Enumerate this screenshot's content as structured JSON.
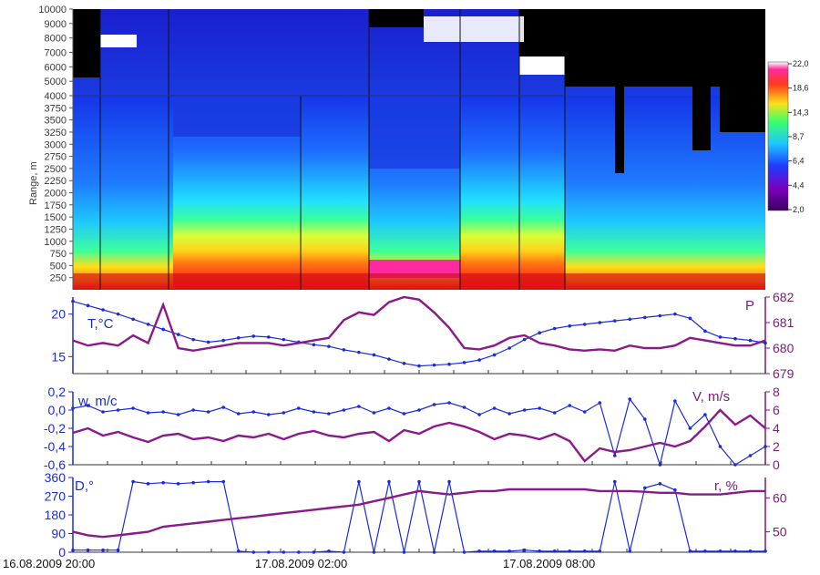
{
  "chart_data": [
    {
      "type": "heatmap",
      "ylabel": "Range, m",
      "yticks": [
        250,
        500,
        750,
        1000,
        1250,
        1500,
        1750,
        2000,
        2250,
        2500,
        2750,
        3000,
        3250,
        3500,
        3750,
        4000,
        5000,
        6000,
        7000,
        8000,
        9000,
        10000
      ],
      "colorbar_ticks": [
        "22,0",
        "18,6",
        "14,3",
        "8,7",
        "6,4",
        "4,4",
        "2,0"
      ],
      "colors": {
        "low": "#4a0070",
        "mid": "#1e6bff",
        "high": "#ff1a1a",
        "max": "#ffffff"
      }
    },
    {
      "type": "line",
      "label_left": "T,°C",
      "label_right": "P",
      "left_ticks": [
        "20",
        "15"
      ],
      "right_ticks": [
        "682",
        "681",
        "680",
        "679"
      ],
      "ylim_left": [
        13,
        22
      ],
      "ylim_right": [
        679,
        682
      ],
      "series": [
        {
          "axis": "left",
          "color": "#1a2bd8",
          "values": [
            21.5,
            21,
            20.5,
            20,
            19.4,
            18.8,
            18.2,
            17.6,
            17,
            16.7,
            16.9,
            17.2,
            17.4,
            17.3,
            17,
            16.7,
            16.4,
            16.2,
            15.8,
            15.5,
            15.2,
            14.7,
            14.2,
            13.9,
            14,
            14.1,
            14.3,
            14.6,
            15.2,
            16,
            17,
            17.8,
            18.3,
            18.6,
            18.8,
            19,
            19.2,
            19.4,
            19.6,
            19.8,
            20,
            19.5,
            18,
            17.3,
            17.1,
            16.9,
            16.6
          ]
        },
        {
          "axis": "right",
          "color": "#8a1a8a",
          "values": [
            680.3,
            680.1,
            680.2,
            680.1,
            680.5,
            680.2,
            681.7,
            680.0,
            679.9,
            680.0,
            680.1,
            680.2,
            680.2,
            680.2,
            680.1,
            680.2,
            680.3,
            680.4,
            681.1,
            681.4,
            681.3,
            681.8,
            682,
            681.9,
            681.4,
            680.8,
            680.0,
            679.95,
            680.1,
            680.4,
            680.5,
            680.2,
            680.1,
            679.95,
            679.9,
            679.95,
            679.9,
            680.1,
            680.0,
            680.0,
            680.1,
            680.4,
            680.3,
            680.2,
            680.1,
            680.1,
            680.3
          ]
        }
      ]
    },
    {
      "type": "line",
      "label_left": "w, m/c",
      "label_right": "V, m/s",
      "left_ticks": [
        "0,2",
        "0,0",
        "-0,2",
        "-0,4",
        "-0,6"
      ],
      "right_ticks": [
        "8",
        "6",
        "4",
        "2",
        "0"
      ],
      "ylim_left": [
        -0.6,
        0.2
      ],
      "ylim_right": [
        0,
        8
      ],
      "series": [
        {
          "axis": "left",
          "color": "#1a2bd8",
          "values": [
            0.02,
            0.05,
            -0.02,
            0.0,
            0.02,
            -0.03,
            -0.02,
            -0.05,
            0.0,
            -0.02,
            0.03,
            -0.04,
            -0.02,
            -0.05,
            -0.03,
            0.02,
            -0.02,
            -0.04,
            0.0,
            0.04,
            -0.03,
            0.02,
            -0.04,
            0.0,
            0.06,
            0.08,
            0.03,
            -0.05,
            0.02,
            -0.04,
            0.0,
            0.02,
            -0.03,
            0.05,
            -0.02,
            0.08,
            -0.5,
            0.12,
            -0.1,
            -0.6,
            0.1,
            -0.2,
            -0.05,
            -0.4,
            -0.6,
            -0.5,
            -0.4
          ]
        },
        {
          "axis": "right",
          "color": "#8a1a8a",
          "values": [
            3.5,
            4.0,
            3.2,
            3.6,
            3.0,
            2.5,
            3.2,
            3.4,
            2.8,
            3.0,
            2.6,
            3.2,
            3.0,
            3.4,
            2.8,
            3.4,
            3.7,
            3.2,
            3.0,
            3.4,
            3.6,
            2.6,
            3.8,
            3.4,
            4.2,
            4.6,
            4.2,
            3.6,
            2.8,
            3.4,
            3.2,
            2.8,
            3.4,
            2.6,
            0.4,
            1.8,
            1.4,
            1.6,
            2.0,
            2.4,
            2.0,
            2.6,
            4.2,
            6.0,
            4.4,
            5.4,
            4.0
          ]
        }
      ]
    },
    {
      "type": "line",
      "label_left": "D,°",
      "label_right": "r, %",
      "left_ticks": [
        "360",
        "270",
        "180",
        "90",
        "0"
      ],
      "right_ticks": [
        "60",
        "50"
      ],
      "ylim_left": [
        0,
        360
      ],
      "ylim_right": [
        44,
        66
      ],
      "series": [
        {
          "axis": "left",
          "color": "#1a2bd8",
          "values": [
            10,
            10,
            10,
            10,
            340,
            330,
            335,
            330,
            335,
            340,
            340,
            5,
            0,
            0,
            0,
            0,
            0,
            5,
            0,
            340,
            0,
            340,
            0,
            340,
            0,
            340,
            0,
            5,
            5,
            5,
            10,
            5,
            5,
            5,
            5,
            5,
            340,
            5,
            310,
            330,
            300,
            5,
            5,
            5,
            5,
            5,
            5
          ]
        },
        {
          "axis": "right",
          "color": "#8a1a8a",
          "values": [
            50,
            49,
            48.5,
            49,
            49.5,
            50,
            51.5,
            52,
            52.5,
            53,
            53.5,
            54,
            54.5,
            55,
            55.5,
            56,
            56.5,
            57,
            57.5,
            58,
            59,
            60,
            61,
            62,
            61.5,
            61,
            61.5,
            62,
            62,
            62.5,
            62.5,
            62.5,
            62.5,
            62.5,
            62.5,
            62,
            62,
            62,
            61.8,
            61.5,
            61.5,
            61,
            61,
            61,
            61.5,
            62,
            62
          ]
        }
      ]
    }
  ],
  "xaxis_labels": [
    "16.08.2009 20:00",
    "17.08.2009 02:00",
    "17.08.2009 08:00"
  ]
}
